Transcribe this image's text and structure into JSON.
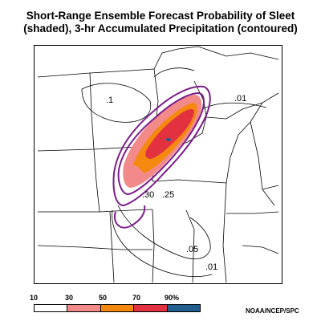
{
  "title": {
    "line1": "Short-Range Ensemble Forecast Probability of Sleet",
    "line2": "(shaded), 3-hr Accumulated Precipitation (contoured)"
  },
  "contour_labels": [
    ".1",
    ".01",
    ".05",
    ".01",
    ".25",
    ".30"
  ],
  "legend": {
    "labels": [
      "10",
      "30",
      "50",
      "70",
      "90%"
    ],
    "colors": [
      "#ffffff",
      "#f28a8a",
      "#f5890f",
      "#e3323f",
      "#1f5e8e"
    ]
  },
  "colors": {
    "outline_contour": "#7a1d8a",
    "boundaries": "#000000"
  },
  "credit": "NOAA/NCEP/SPC"
}
